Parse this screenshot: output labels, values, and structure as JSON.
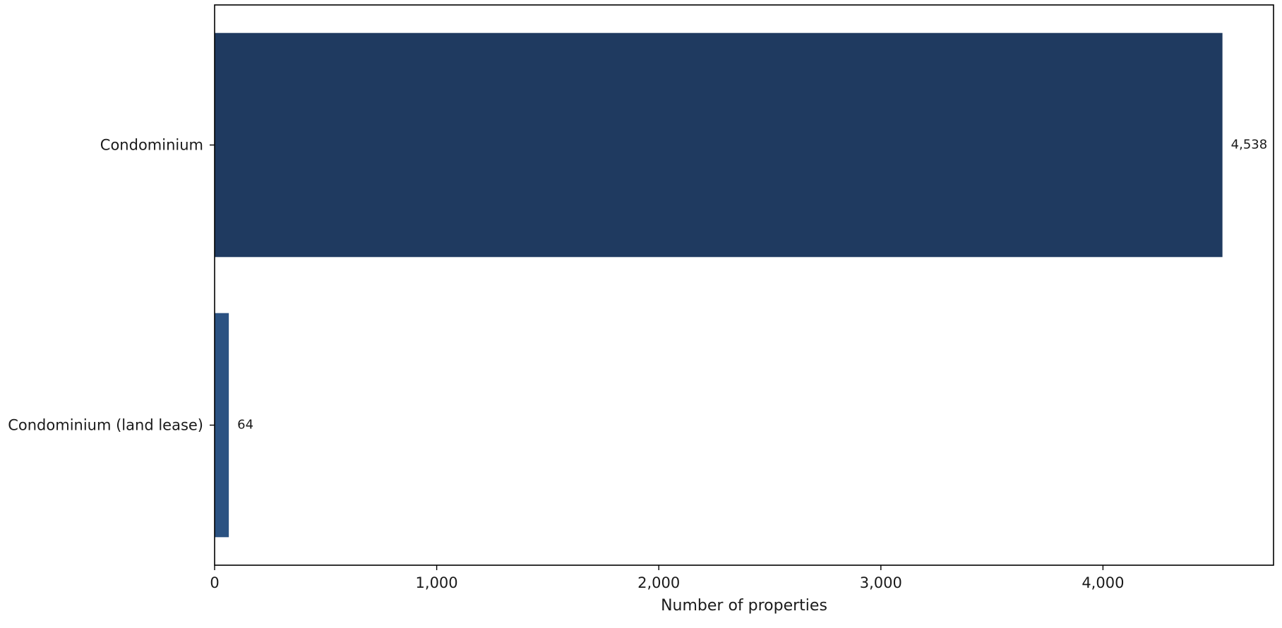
{
  "chart_data": {
    "type": "bar",
    "orientation": "horizontal",
    "title": "",
    "xlabel": "Number of properties",
    "ylabel": "",
    "categories": [
      "Condominium",
      "Condominium (land lease)"
    ],
    "values": [
      4538,
      64
    ],
    "value_labels": [
      "4,538",
      "64"
    ],
    "bar_colors": [
      "#1f3a60",
      "#2b5282"
    ],
    "xlim": [
      0,
      4768
    ],
    "xticks": [
      0,
      1000,
      2000,
      3000,
      4000
    ],
    "xtick_labels": [
      "0",
      "1,000",
      "2,000",
      "3,000",
      "4,000"
    ],
    "grid": false,
    "legend": "none"
  }
}
